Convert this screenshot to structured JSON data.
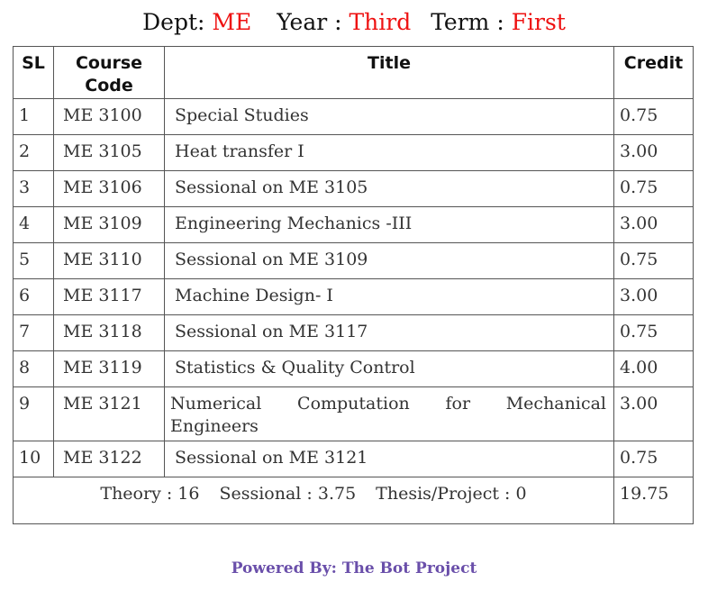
{
  "heading": {
    "dept_label": "Dept:",
    "dept_value": "ME",
    "year_label": "Year :",
    "year_value": "Third",
    "term_label": "Term :",
    "term_value": "First",
    "highlight_color": "#ee1111"
  },
  "table": {
    "headers": {
      "sl": "SL",
      "code_line1": "Course",
      "code_line2": "Code",
      "title": "Title",
      "credit": "Credit"
    },
    "rows": [
      {
        "sl": "1",
        "code": "ME 3100",
        "title": "Special Studies",
        "credit": "0.75"
      },
      {
        "sl": "2",
        "code": "ME 3105",
        "title": "Heat transfer I",
        "credit": "3.00"
      },
      {
        "sl": "3",
        "code": "ME 3106",
        "title": "Sessional on ME 3105",
        "credit": "0.75"
      },
      {
        "sl": "4",
        "code": "ME 3109",
        "title": "Engineering Mechanics -III",
        "credit": "3.00"
      },
      {
        "sl": "5",
        "code": "ME 3110",
        "title": "Sessional on ME 3109",
        "credit": "0.75"
      },
      {
        "sl": "6",
        "code": "ME 3117",
        "title": "Machine Design- I",
        "credit": "3.00"
      },
      {
        "sl": "7",
        "code": "ME 3118",
        "title": "Sessional on ME 3117",
        "credit": "0.75"
      },
      {
        "sl": "8",
        "code": "ME 3119",
        "title": "Statistics & Quality Control",
        "credit": "4.00"
      },
      {
        "sl": "9",
        "code": "ME 3121",
        "title": "Numerical Computation for Mechanical Engineers",
        "credit": "3.00"
      },
      {
        "sl": "10",
        "code": "ME 3122",
        "title": "Sessional on ME 3121",
        "credit": "0.75"
      }
    ],
    "summary": {
      "theory": "Theory : 16",
      "sessional": "Sessional : 3.75",
      "thesis": "Thesis/Project : 0",
      "total": "19.75"
    }
  },
  "footer": {
    "text": "Powered By: The Bot Project",
    "color": "#6a4faa"
  }
}
